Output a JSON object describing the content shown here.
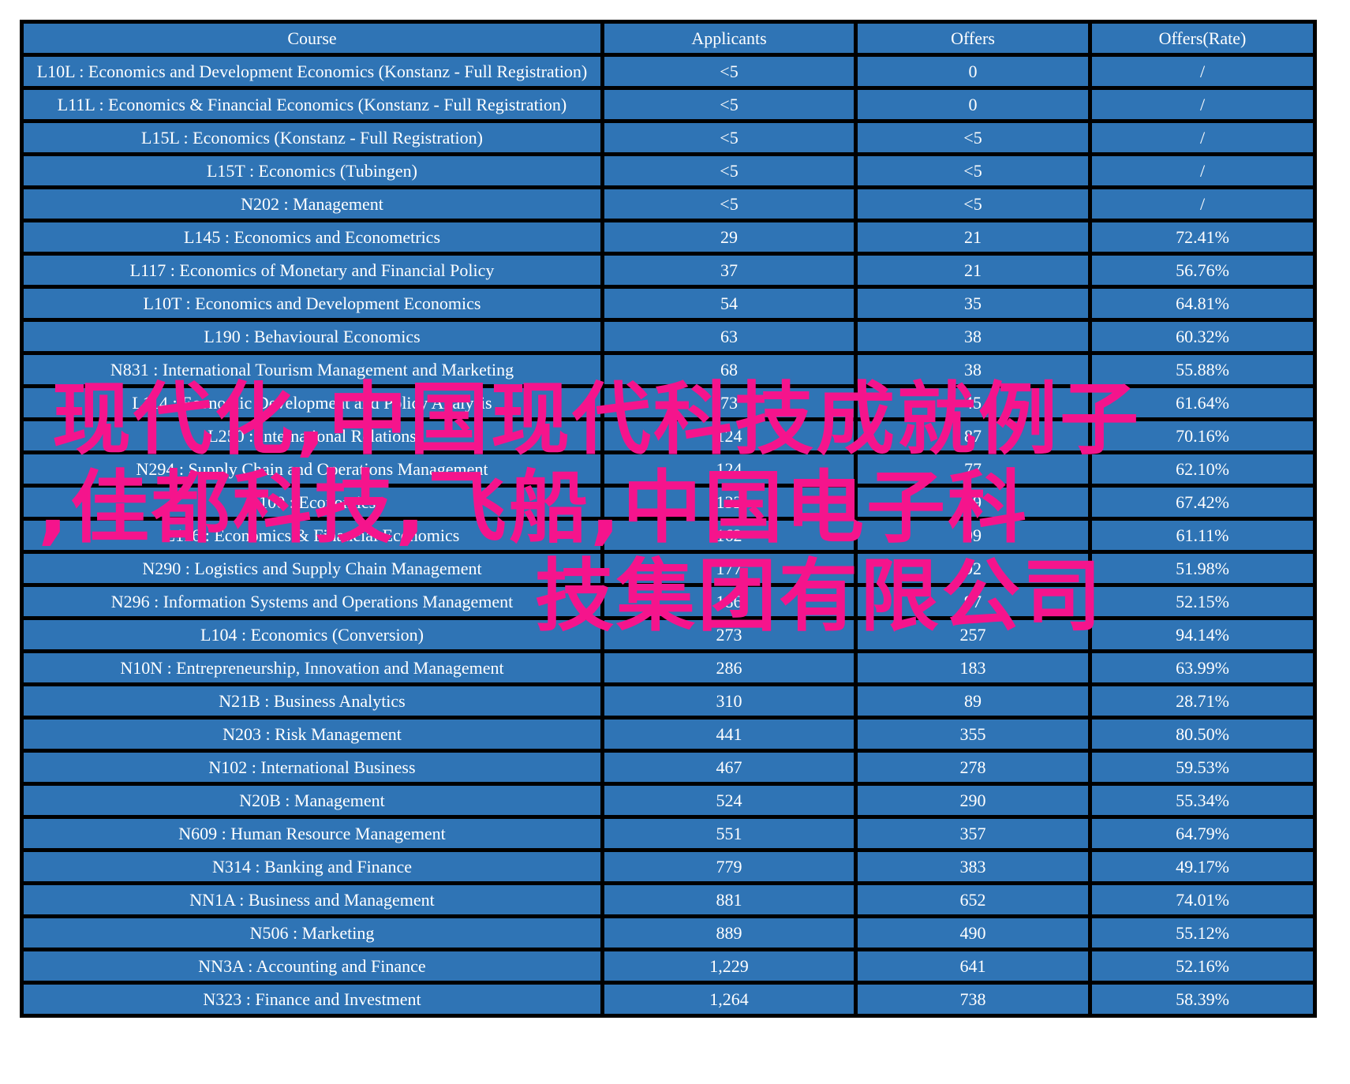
{
  "table": {
    "columns": [
      "Course",
      "Applicants",
      "Offers",
      "Offers(Rate)"
    ],
    "colors": {
      "row_background": "#2F74B5",
      "grid_border": "#000000",
      "text_default": "#FFFFFF",
      "text_highlight_yellow": "#FFFF00",
      "text_highlight_red": "#E8141E"
    },
    "rows": [
      {
        "course": "L10L : Economics and Development Economics (Konstanz - Full Registration)",
        "applicants": "<5",
        "offers": "0",
        "rate": "/",
        "course_color": "white",
        "applicants_color": "white",
        "rate_color": "white"
      },
      {
        "course": "L11L : Economics & Financial Economics (Konstanz - Full Registration)",
        "applicants": "<5",
        "offers": "0",
        "rate": "/",
        "course_color": "white",
        "applicants_color": "white",
        "rate_color": "white"
      },
      {
        "course": "L15L : Economics (Konstanz - Full Registration)",
        "applicants": "<5",
        "offers": "<5",
        "rate": "/",
        "course_color": "white",
        "applicants_color": "white",
        "rate_color": "white"
      },
      {
        "course": "L15T : Economics (Tubingen)",
        "applicants": "<5",
        "offers": "<5",
        "rate": "/",
        "course_color": "white",
        "applicants_color": "white",
        "rate_color": "white"
      },
      {
        "course": "N202 : Management",
        "applicants": "<5",
        "offers": "<5",
        "rate": "/",
        "course_color": "white",
        "applicants_color": "white",
        "rate_color": "white"
      },
      {
        "course": "L145 : Economics and Econometrics",
        "applicants": "29",
        "offers": "21",
        "rate": "72.41%",
        "course_color": "white",
        "applicants_color": "white",
        "rate_color": "red"
      },
      {
        "course": "L117 : Economics of Monetary and Financial Policy",
        "applicants": "37",
        "offers": "21",
        "rate": "56.76%",
        "course_color": "white",
        "applicants_color": "white",
        "rate_color": "white"
      },
      {
        "course": "L10T : Economics and Development Economics",
        "applicants": "54",
        "offers": "35",
        "rate": "64.81%",
        "course_color": "white",
        "applicants_color": "white",
        "rate_color": "white"
      },
      {
        "course": "L190 : Behavioural Economics",
        "applicants": "63",
        "offers": "38",
        "rate": "60.32%",
        "course_color": "white",
        "applicants_color": "white",
        "rate_color": "white"
      },
      {
        "course": "N831 : International Tourism Management and Marketing",
        "applicants": "68",
        "offers": "38",
        "rate": "55.88%",
        "course_color": "white",
        "applicants_color": "white",
        "rate_color": "white"
      },
      {
        "course": "L114 : Economic Development and Policy Analysis",
        "applicants": "73",
        "offers": "45",
        "rate": "61.64%",
        "course_color": "white",
        "applicants_color": "white",
        "rate_color": "white"
      },
      {
        "course": "L250 : International Relations",
        "applicants": "124",
        "offers": "87",
        "rate": "70.16%",
        "course_color": "white",
        "applicants_color": "white",
        "rate_color": "red"
      },
      {
        "course": "N294 : Supply Chain and Operations Management",
        "applicants": "124",
        "offers": "77",
        "rate": "62.10%",
        "course_color": "white",
        "applicants_color": "white",
        "rate_color": "white"
      },
      {
        "course": "L100 : Economics",
        "applicants": "132",
        "offers": "89",
        "rate": "67.42%",
        "course_color": "white",
        "applicants_color": "white",
        "rate_color": "white"
      },
      {
        "course": "L116 : Economics & Financial Economics",
        "applicants": "162",
        "offers": "99",
        "rate": "61.11%",
        "course_color": "white",
        "applicants_color": "white",
        "rate_color": "white"
      },
      {
        "course": "N290 : Logistics and Supply Chain Management",
        "applicants": "177",
        "offers": "92",
        "rate": "51.98%",
        "course_color": "white",
        "applicants_color": "white",
        "rate_color": "white"
      },
      {
        "course": "N296 : Information Systems and Operations Management",
        "applicants": "186",
        "offers": "97",
        "rate": "52.15%",
        "course_color": "white",
        "applicants_color": "white",
        "rate_color": "white"
      },
      {
        "course": "L104 : Economics (Conversion)",
        "applicants": "273",
        "offers": "257",
        "rate": "94.14%",
        "course_color": "white",
        "applicants_color": "white",
        "rate_color": "red"
      },
      {
        "course": "N10N : Entrepreneurship, Innovation and Management",
        "applicants": "286",
        "offers": "183",
        "rate": "63.99%",
        "course_color": "white",
        "applicants_color": "white",
        "rate_color": "white"
      },
      {
        "course": "N21B : Business Analytics",
        "applicants": "310",
        "offers": "89",
        "rate": "28.71%",
        "course_color": "white",
        "applicants_color": "white",
        "rate_color": "white"
      },
      {
        "course": "N203 : Risk Management",
        "applicants": "441",
        "offers": "355",
        "rate": "80.50%",
        "course_color": "white",
        "applicants_color": "white",
        "rate_color": "red"
      },
      {
        "course": "N102 : International Business",
        "applicants": "467",
        "offers": "278",
        "rate": "59.53%",
        "course_color": "white",
        "applicants_color": "white",
        "rate_color": "white"
      },
      {
        "course": "N20B : Management",
        "applicants": "524",
        "offers": "290",
        "rate": "55.34%",
        "course_color": "yellow",
        "applicants_color": "yellow",
        "rate_color": "white"
      },
      {
        "course": "N609 : Human Resource Management",
        "applicants": "551",
        "offers": "357",
        "rate": "64.79%",
        "course_color": "yellow",
        "applicants_color": "yellow",
        "rate_color": "white"
      },
      {
        "course": "N314 : Banking and Finance",
        "applicants": "779",
        "offers": "383",
        "rate": "49.17%",
        "course_color": "yellow",
        "applicants_color": "yellow",
        "rate_color": "white"
      },
      {
        "course": "NN1A : Business and Management",
        "applicants": "881",
        "offers": "652",
        "rate": "74.01%",
        "course_color": "yellow",
        "applicants_color": "yellow",
        "rate_color": "red"
      },
      {
        "course": "N506 : Marketing",
        "applicants": "889",
        "offers": "490",
        "rate": "55.12%",
        "course_color": "yellow",
        "applicants_color": "yellow",
        "rate_color": "white"
      },
      {
        "course": "NN3A : Accounting and Finance",
        "applicants": "1,229",
        "offers": "641",
        "rate": "52.16%",
        "course_color": "yellow",
        "applicants_color": "yellow",
        "rate_color": "white"
      },
      {
        "course": "N323 : Finance and Investment",
        "applicants": "1,264",
        "offers": "738",
        "rate": "58.39%",
        "course_color": "yellow",
        "applicants_color": "yellow",
        "rate_color": "white"
      }
    ]
  },
  "watermark": {
    "color": "#F5148C",
    "full_text": "现代化,中国现代科技成就例子,佳都科技,飞船,中国电子科技集团有限公司",
    "lines": [
      "现代化,中国现代科技成就例子",
      ",佳都科技,飞船,中国电子科",
      "技集团有限公司"
    ]
  }
}
